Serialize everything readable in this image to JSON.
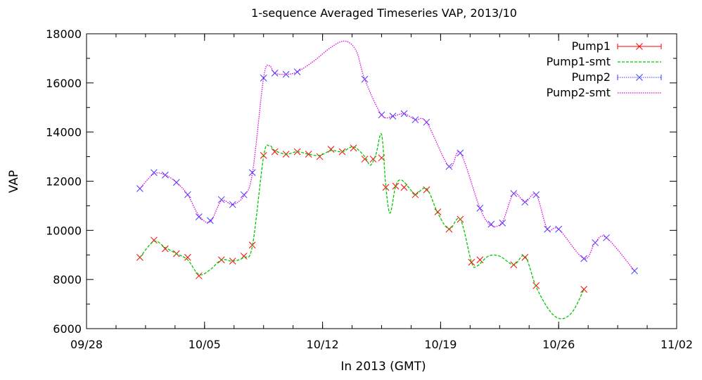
{
  "chart_data": {
    "type": "line",
    "title": "1-sequence Averaged Timeseries VAP, 2013/10",
    "xlabel": "In 2013 (GMT)",
    "ylabel": "VAP",
    "xlim": [
      "2013-09-28",
      "2013-11-02"
    ],
    "ylim": [
      6000,
      18000
    ],
    "x_ticks": [
      "09/28",
      "10/05",
      "10/12",
      "10/19",
      "10/26",
      "11/02"
    ],
    "y_ticks": [
      "6000",
      "8000",
      "10000",
      "12000",
      "14000",
      "16000",
      "18000"
    ],
    "grid": false,
    "legend_position": "top-right",
    "series": [
      {
        "name": "Pump1",
        "color": "#ff0000",
        "style": "points-x",
        "points": [
          [
            "2013-10-01 04:00",
            8900
          ],
          [
            "2013-10-02 00:00",
            9600
          ],
          [
            "2013-10-02 16:00",
            9250
          ],
          [
            "2013-10-03 08:00",
            9050
          ],
          [
            "2013-10-04 00:00",
            8900
          ],
          [
            "2013-10-04 16:00",
            8150
          ],
          [
            "2013-10-06 00:00",
            8800
          ],
          [
            "2013-10-06 16:00",
            8750
          ],
          [
            "2013-10-07 08:00",
            8950
          ],
          [
            "2013-10-07 20:00",
            9400
          ],
          [
            "2013-10-08 12:00",
            13050
          ],
          [
            "2013-10-09 04:00",
            13200
          ],
          [
            "2013-10-09 20:00",
            13100
          ],
          [
            "2013-10-10 12:00",
            13200
          ],
          [
            "2013-10-11 04:00",
            13100
          ],
          [
            "2013-10-11 20:00",
            13000
          ],
          [
            "2013-10-12 12:00",
            13300
          ],
          [
            "2013-10-13 04:00",
            13200
          ],
          [
            "2013-10-13 20:00",
            13350
          ],
          [
            "2013-10-14 12:00",
            12900
          ],
          [
            "2013-10-15 00:00",
            12900
          ],
          [
            "2013-10-15 12:00",
            12950
          ],
          [
            "2013-10-15 18:00",
            11750
          ],
          [
            "2013-10-16 08:00",
            11800
          ],
          [
            "2013-10-16 20:00",
            11750
          ],
          [
            "2013-10-17 12:00",
            11450
          ],
          [
            "2013-10-18 04:00",
            11650
          ],
          [
            "2013-10-18 20:00",
            10750
          ],
          [
            "2013-10-19 12:00",
            10050
          ],
          [
            "2013-10-20 04:00",
            10450
          ],
          [
            "2013-10-20 20:00",
            8700
          ],
          [
            "2013-10-21 08:00",
            8800
          ],
          [
            "2013-10-23 08:00",
            8600
          ],
          [
            "2013-10-24 00:00",
            8900
          ],
          [
            "2013-10-24 16:00",
            7750
          ],
          [
            "2013-10-27 12:00",
            7600
          ]
        ]
      },
      {
        "name": "Pump1-smt",
        "color": "#00c800",
        "style": "dashed-line",
        "points": [
          [
            "2013-10-01 04:00",
            8900
          ],
          [
            "2013-10-02 00:00",
            9550
          ],
          [
            "2013-10-02 16:00",
            9300
          ],
          [
            "2013-10-03 08:00",
            9050
          ],
          [
            "2013-10-04 00:00",
            8800
          ],
          [
            "2013-10-04 16:00",
            8200
          ],
          [
            "2013-10-05 08:00",
            8400
          ],
          [
            "2013-10-06 00:00",
            8800
          ],
          [
            "2013-10-06 16:00",
            8750
          ],
          [
            "2013-10-07 08:00",
            8900
          ],
          [
            "2013-10-07 20:00",
            9350
          ],
          [
            "2013-10-08 12:00",
            13000
          ],
          [
            "2013-10-08 20:00",
            13450
          ],
          [
            "2013-10-09 04:00",
            13250
          ],
          [
            "2013-10-09 20:00",
            13100
          ],
          [
            "2013-10-10 12:00",
            13200
          ],
          [
            "2013-10-11 04:00",
            13100
          ],
          [
            "2013-10-11 20:00",
            13050
          ],
          [
            "2013-10-12 12:00",
            13250
          ],
          [
            "2013-10-13 04:00",
            13200
          ],
          [
            "2013-10-13 20:00",
            13400
          ],
          [
            "2013-10-14 12:00",
            13000
          ],
          [
            "2013-10-14 20:00",
            12650
          ],
          [
            "2013-10-15 04:00",
            13100
          ],
          [
            "2013-10-15 12:00",
            13900
          ],
          [
            "2013-10-15 18:00",
            11800
          ],
          [
            "2013-10-16 00:00",
            10700
          ],
          [
            "2013-10-16 08:00",
            11800
          ],
          [
            "2013-10-16 16:00",
            12050
          ],
          [
            "2013-10-17 04:00",
            11700
          ],
          [
            "2013-10-17 12:00",
            11450
          ],
          [
            "2013-10-18 04:00",
            11700
          ],
          [
            "2013-10-18 20:00",
            10700
          ],
          [
            "2013-10-19 12:00",
            10050
          ],
          [
            "2013-10-20 04:00",
            10450
          ],
          [
            "2013-10-20 20:00",
            8700
          ],
          [
            "2013-10-21 04:00",
            8550
          ],
          [
            "2013-10-21 20:00",
            8950
          ],
          [
            "2013-10-22 12:00",
            8950
          ],
          [
            "2013-10-23 08:00",
            8600
          ],
          [
            "2013-10-24 00:00",
            8950
          ],
          [
            "2013-10-24 16:00",
            7700
          ],
          [
            "2013-10-25 12:00",
            6700
          ],
          [
            "2013-10-26 04:00",
            6400
          ],
          [
            "2013-10-26 20:00",
            6700
          ],
          [
            "2013-10-27 12:00",
            7600
          ]
        ]
      },
      {
        "name": "Pump2",
        "color": "#3c3cff",
        "style": "points-x",
        "points": [
          [
            "2013-10-01 04:00",
            11700
          ],
          [
            "2013-10-02 00:00",
            12350
          ],
          [
            "2013-10-02 16:00",
            12250
          ],
          [
            "2013-10-03 08:00",
            11950
          ],
          [
            "2013-10-04 00:00",
            11450
          ],
          [
            "2013-10-04 16:00",
            10550
          ],
          [
            "2013-10-05 08:00",
            10400
          ],
          [
            "2013-10-06 00:00",
            11250
          ],
          [
            "2013-10-06 16:00",
            11050
          ],
          [
            "2013-10-07 08:00",
            11450
          ],
          [
            "2013-10-07 20:00",
            12350
          ],
          [
            "2013-10-08 12:00",
            16200
          ],
          [
            "2013-10-09 04:00",
            16400
          ],
          [
            "2013-10-09 20:00",
            16350
          ],
          [
            "2013-10-10 12:00",
            16450
          ],
          [
            "2013-10-14 12:00",
            16150
          ],
          [
            "2013-10-15 12:00",
            14700
          ],
          [
            "2013-10-16 04:00",
            14650
          ],
          [
            "2013-10-16 20:00",
            14750
          ],
          [
            "2013-10-17 12:00",
            14500
          ],
          [
            "2013-10-18 04:00",
            14400
          ],
          [
            "2013-10-19 12:00",
            12600
          ],
          [
            "2013-10-20 04:00",
            13150
          ],
          [
            "2013-10-21 08:00",
            10900
          ],
          [
            "2013-10-22 00:00",
            10250
          ],
          [
            "2013-10-22 16:00",
            10300
          ],
          [
            "2013-10-23 08:00",
            11500
          ],
          [
            "2013-10-24 00:00",
            11150
          ],
          [
            "2013-10-24 16:00",
            11450
          ],
          [
            "2013-10-25 08:00",
            10050
          ],
          [
            "2013-10-26 00:00",
            10050
          ],
          [
            "2013-10-27 12:00",
            8850
          ],
          [
            "2013-10-28 04:00",
            9500
          ],
          [
            "2013-10-28 20:00",
            9700
          ],
          [
            "2013-10-30 12:00",
            8350
          ]
        ]
      },
      {
        "name": "Pump2-smt",
        "color": "#e100e1",
        "style": "dotted-line",
        "points": [
          [
            "2013-10-01 04:00",
            11700
          ],
          [
            "2013-10-02 00:00",
            12300
          ],
          [
            "2013-10-02 16:00",
            12250
          ],
          [
            "2013-10-03 08:00",
            11950
          ],
          [
            "2013-10-04 00:00",
            11450
          ],
          [
            "2013-10-04 16:00",
            10600
          ],
          [
            "2013-10-05 08:00",
            10350
          ],
          [
            "2013-10-06 00:00",
            11200
          ],
          [
            "2013-10-06 16:00",
            11050
          ],
          [
            "2013-10-07 08:00",
            11400
          ],
          [
            "2013-10-07 20:00",
            12300
          ],
          [
            "2013-10-08 12:00",
            16200
          ],
          [
            "2013-10-08 20:00",
            16700
          ],
          [
            "2013-10-09 04:00",
            16400
          ],
          [
            "2013-10-09 20:00",
            16350
          ],
          [
            "2013-10-10 12:00",
            16450
          ],
          [
            "2013-10-11 12:00",
            16900
          ],
          [
            "2013-10-12 12:00",
            17450
          ],
          [
            "2013-10-13 08:00",
            17700
          ],
          [
            "2013-10-14 00:00",
            17300
          ],
          [
            "2013-10-14 12:00",
            16150
          ],
          [
            "2013-10-15 12:00",
            14700
          ],
          [
            "2013-10-16 04:00",
            14650
          ],
          [
            "2013-10-16 20:00",
            14750
          ],
          [
            "2013-10-17 12:00",
            14500
          ],
          [
            "2013-10-18 04:00",
            14400
          ],
          [
            "2013-10-19 12:00",
            12600
          ],
          [
            "2013-10-20 04:00",
            13150
          ],
          [
            "2013-10-21 08:00",
            10900
          ],
          [
            "2013-10-22 00:00",
            10200
          ],
          [
            "2013-10-22 16:00",
            10350
          ],
          [
            "2013-10-23 08:00",
            11500
          ],
          [
            "2013-10-24 00:00",
            11150
          ],
          [
            "2013-10-24 16:00",
            11450
          ],
          [
            "2013-10-25 08:00",
            10050
          ],
          [
            "2013-10-26 00:00",
            10050
          ],
          [
            "2013-10-27 12:00",
            8850
          ],
          [
            "2013-10-28 04:00",
            9500
          ],
          [
            "2013-10-28 20:00",
            9700
          ],
          [
            "2013-10-30 12:00",
            8350
          ]
        ]
      }
    ]
  }
}
